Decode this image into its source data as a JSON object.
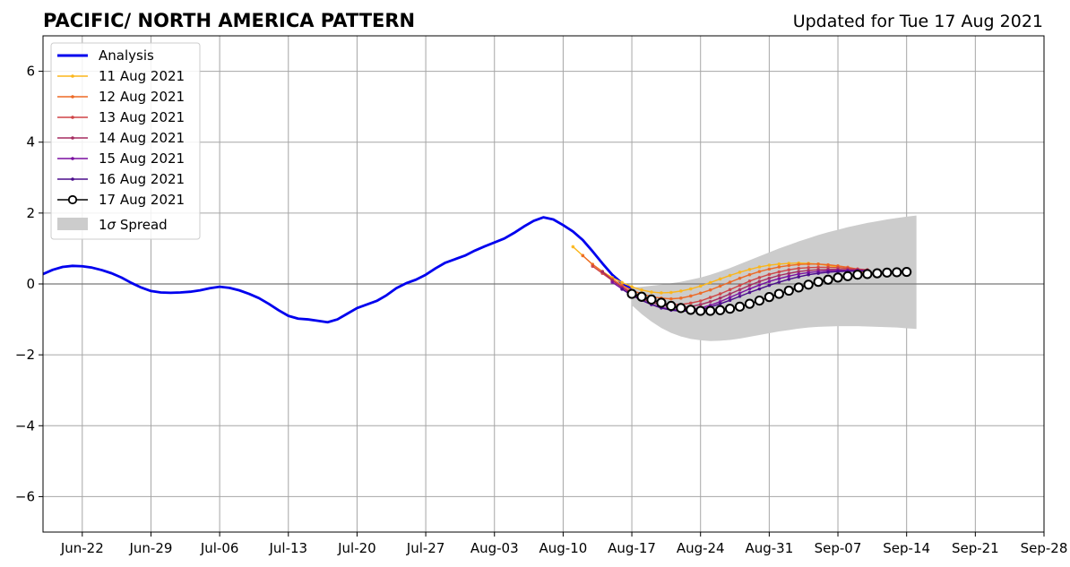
{
  "header": {
    "title": "PACIFIC/ NORTH AMERICA PATTERN",
    "updated": "Updated for Tue 17 Aug 2021"
  },
  "chart_data": {
    "type": "line",
    "title": "PACIFIC/ NORTH AMERICA PATTERN",
    "subtitle": "Updated for Tue 17 Aug 2021",
    "xlabel": "",
    "ylabel": "",
    "x_start": "2021-06-18",
    "x_end": "2021-09-28",
    "xlim": [
      "2021-06-18",
      "2021-09-28"
    ],
    "ylim": [
      -7,
      7
    ],
    "x_ticks": [
      "Jun-22",
      "Jun-29",
      "Jul-06",
      "Jul-13",
      "Jul-20",
      "Jul-27",
      "Aug-03",
      "Aug-10",
      "Aug-17",
      "Aug-24",
      "Aug-31",
      "Sep-07",
      "Sep-14",
      "Sep-21",
      "Sep-28"
    ],
    "y_ticks": [
      6,
      4,
      2,
      0,
      -2,
      -4,
      -6
    ],
    "y_tick_labels": [
      "6",
      "4",
      "2",
      "0",
      "−2",
      "−4",
      "−6"
    ],
    "grid": true,
    "zero_line": true,
    "legend_position": "upper-left",
    "legend": {
      "analysis": "Analysis",
      "f11": "11 Aug 2021",
      "f12": "12 Aug 2021",
      "f13": "13 Aug 2021",
      "f14": "14 Aug 2021",
      "f15": "15 Aug 2021",
      "f16": "16 Aug 2021",
      "f17": "17 Aug 2021",
      "spread_prefix": "1",
      "spread_sigma": "σ",
      "spread_suffix": " Spread"
    },
    "colors": {
      "analysis": "#0000ee",
      "f11": "#fbb61a",
      "f12": "#ed6925",
      "f13": "#cf4446",
      "f14": "#a52c60",
      "f15": "#7a0fa0",
      "f16": "#4a0c8c",
      "f17": "#000000",
      "spread": "#cccccc"
    },
    "analysis": {
      "name": "Analysis",
      "x": [
        "2021-06-18",
        "2021-06-19",
        "2021-06-20",
        "2021-06-21",
        "2021-06-22",
        "2021-06-23",
        "2021-06-24",
        "2021-06-25",
        "2021-06-26",
        "2021-06-27",
        "2021-06-28",
        "2021-06-29",
        "2021-06-30",
        "2021-07-01",
        "2021-07-02",
        "2021-07-03",
        "2021-07-04",
        "2021-07-05",
        "2021-07-06",
        "2021-07-07",
        "2021-07-08",
        "2021-07-09",
        "2021-07-10",
        "2021-07-11",
        "2021-07-12",
        "2021-07-13",
        "2021-07-14",
        "2021-07-15",
        "2021-07-16",
        "2021-07-17",
        "2021-07-18",
        "2021-07-19",
        "2021-07-20",
        "2021-07-21",
        "2021-07-22",
        "2021-07-23",
        "2021-07-24",
        "2021-07-25",
        "2021-07-26",
        "2021-07-27",
        "2021-07-28",
        "2021-07-29",
        "2021-07-30",
        "2021-07-31",
        "2021-08-01",
        "2021-08-02",
        "2021-08-03",
        "2021-08-04",
        "2021-08-05",
        "2021-08-06",
        "2021-08-07",
        "2021-08-08",
        "2021-08-09",
        "2021-08-10",
        "2021-08-11",
        "2021-08-12",
        "2021-08-13",
        "2021-08-14",
        "2021-08-15",
        "2021-08-16",
        "2021-08-17"
      ],
      "values": [
        0.28,
        0.4,
        0.48,
        0.51,
        0.5,
        0.46,
        0.39,
        0.3,
        0.18,
        0.03,
        -0.1,
        -0.2,
        -0.24,
        -0.25,
        -0.24,
        -0.22,
        -0.18,
        -0.12,
        -0.08,
        -0.11,
        -0.18,
        -0.28,
        -0.4,
        -0.56,
        -0.74,
        -0.9,
        -0.98,
        -1.0,
        -1.04,
        -1.08,
        -1.0,
        -0.84,
        -0.68,
        -0.58,
        -0.48,
        -0.32,
        -0.12,
        0.02,
        0.12,
        0.26,
        0.44,
        0.6,
        0.7,
        0.8,
        0.94,
        1.06,
        1.17,
        1.28,
        1.44,
        1.62,
        1.78,
        1.88,
        1.82,
        1.66,
        1.48,
        1.24,
        0.92,
        0.58,
        0.26,
        0.02,
        -0.12
      ]
    },
    "forecasts": [
      {
        "key": "f11",
        "name": "11 Aug 2021",
        "x_start": "2021-08-11",
        "values": [
          1.05,
          0.8,
          0.55,
          0.35,
          0.18,
          0.04,
          -0.08,
          -0.17,
          -0.23,
          -0.25,
          -0.24,
          -0.2,
          -0.14,
          -0.06,
          0.04,
          0.14,
          0.24,
          0.33,
          0.41,
          0.48,
          0.53,
          0.56,
          0.58,
          0.59,
          0.58,
          0.56,
          0.52,
          0.48,
          0.42,
          0.36,
          0.3
        ]
      },
      {
        "key": "f12",
        "name": "12 Aug 2021",
        "x_start": "2021-08-12",
        "values": [
          0.8,
          0.55,
          0.35,
          0.14,
          -0.04,
          -0.18,
          -0.28,
          -0.36,
          -0.4,
          -0.42,
          -0.4,
          -0.34,
          -0.26,
          -0.17,
          -0.06,
          0.05,
          0.16,
          0.26,
          0.35,
          0.42,
          0.48,
          0.52,
          0.55,
          0.56,
          0.56,
          0.54,
          0.51,
          0.47,
          0.42,
          0.38
        ]
      },
      {
        "key": "f13",
        "name": "13 Aug 2021",
        "x_start": "2021-08-13",
        "values": [
          0.5,
          0.3,
          0.1,
          -0.08,
          -0.24,
          -0.38,
          -0.48,
          -0.54,
          -0.58,
          -0.58,
          -0.54,
          -0.48,
          -0.38,
          -0.28,
          -0.16,
          -0.04,
          0.08,
          0.18,
          0.27,
          0.34,
          0.4,
          0.44,
          0.46,
          0.47,
          0.47,
          0.46,
          0.44,
          0.42,
          0.4
        ]
      },
      {
        "key": "f14",
        "name": "14 Aug 2021",
        "x_start": "2021-08-14",
        "values": [
          0.35,
          0.1,
          -0.1,
          -0.28,
          -0.42,
          -0.52,
          -0.6,
          -0.64,
          -0.66,
          -0.64,
          -0.58,
          -0.5,
          -0.4,
          -0.28,
          -0.16,
          -0.04,
          0.07,
          0.16,
          0.24,
          0.3,
          0.35,
          0.38,
          0.4,
          0.41,
          0.41,
          0.4,
          0.4,
          0.39
        ]
      },
      {
        "key": "f15",
        "name": "15 Aug 2021",
        "x_start": "2021-08-15",
        "values": [
          0.05,
          -0.14,
          -0.32,
          -0.46,
          -0.58,
          -0.66,
          -0.72,
          -0.74,
          -0.72,
          -0.68,
          -0.6,
          -0.5,
          -0.38,
          -0.26,
          -0.14,
          -0.03,
          0.07,
          0.15,
          0.22,
          0.28,
          0.32,
          0.35,
          0.37,
          0.38,
          0.38,
          0.38,
          0.37
        ]
      },
      {
        "key": "f16",
        "name": "16 Aug 2021",
        "x_start": "2021-08-16",
        "values": [
          -0.15,
          -0.32,
          -0.46,
          -0.58,
          -0.68,
          -0.74,
          -0.77,
          -0.76,
          -0.72,
          -0.65,
          -0.56,
          -0.46,
          -0.35,
          -0.24,
          -0.14,
          -0.04,
          0.05,
          0.13,
          0.2,
          0.26,
          0.3,
          0.33,
          0.35,
          0.36,
          0.36,
          0.36
        ]
      }
    ],
    "forecast_17": {
      "name": "17 Aug 2021",
      "x_start": "2021-08-17",
      "values": [
        -0.28,
        -0.36,
        -0.44,
        -0.53,
        -0.62,
        -0.68,
        -0.73,
        -0.76,
        -0.76,
        -0.74,
        -0.7,
        -0.64,
        -0.56,
        -0.47,
        -0.37,
        -0.28,
        -0.19,
        -0.1,
        -0.02,
        0.06,
        0.12,
        0.18,
        0.22,
        0.26,
        0.28,
        0.3,
        0.32,
        0.33,
        0.34
      ]
    },
    "spread": {
      "name": "1σ Spread",
      "x_start": "2021-08-17",
      "upper": [
        -0.1,
        -0.08,
        -0.05,
        -0.02,
        0.02,
        0.06,
        0.12,
        0.18,
        0.26,
        0.35,
        0.45,
        0.56,
        0.67,
        0.78,
        0.89,
        1.0,
        1.1,
        1.2,
        1.29,
        1.38,
        1.46,
        1.53,
        1.6,
        1.66,
        1.72,
        1.77,
        1.82,
        1.86,
        1.9,
        1.93
      ],
      "lower": [
        -0.6,
        -0.85,
        -1.06,
        -1.24,
        -1.38,
        -1.48,
        -1.55,
        -1.59,
        -1.61,
        -1.6,
        -1.58,
        -1.54,
        -1.49,
        -1.44,
        -1.39,
        -1.34,
        -1.3,
        -1.26,
        -1.23,
        -1.21,
        -1.2,
        -1.19,
        -1.19,
        -1.19,
        -1.2,
        -1.21,
        -1.22,
        -1.23,
        -1.25,
        -1.27
      ]
    }
  }
}
